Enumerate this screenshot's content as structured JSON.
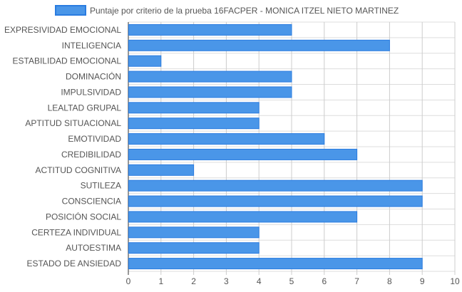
{
  "chart_data": {
    "type": "bar",
    "orientation": "horizontal",
    "series": [
      {
        "name": "Puntaje por criterio de la prueba 16FACPER - MONICA ITZEL NIETO MARTINEZ",
        "color": "#4a96e8",
        "border_color": "#2a7ce0",
        "values": [
          5,
          8,
          1,
          5,
          5,
          4,
          4,
          6,
          7,
          2,
          9,
          9,
          7,
          4,
          4,
          9
        ]
      }
    ],
    "categories": [
      "EXPRESIVIDAD EMOCIONAL",
      "INTELIGENCIA",
      "ESTABILIDAD EMOCIONAL",
      "DOMINACIÓN",
      "IMPULSIVIDAD",
      "LEALTAD GRUPAL",
      "APTITUD SITUACIONAL",
      "EMOTIVIDAD",
      "CREDIBILIDAD",
      "ACTITUD COGNITIVA",
      "SUTILEZA",
      "CONSCIENCIA",
      "POSICIÓN SOCIAL",
      "CERTEZA INDIVIDUAL",
      "AUTOESTIMA",
      "ESTADO DE ANSIEDAD"
    ],
    "xlim": [
      0,
      10
    ],
    "xticks": [
      "0",
      "1",
      "2",
      "3",
      "4",
      "5",
      "6",
      "7",
      "8",
      "9",
      "10"
    ],
    "grid": true,
    "legend_position": "top-center"
  }
}
